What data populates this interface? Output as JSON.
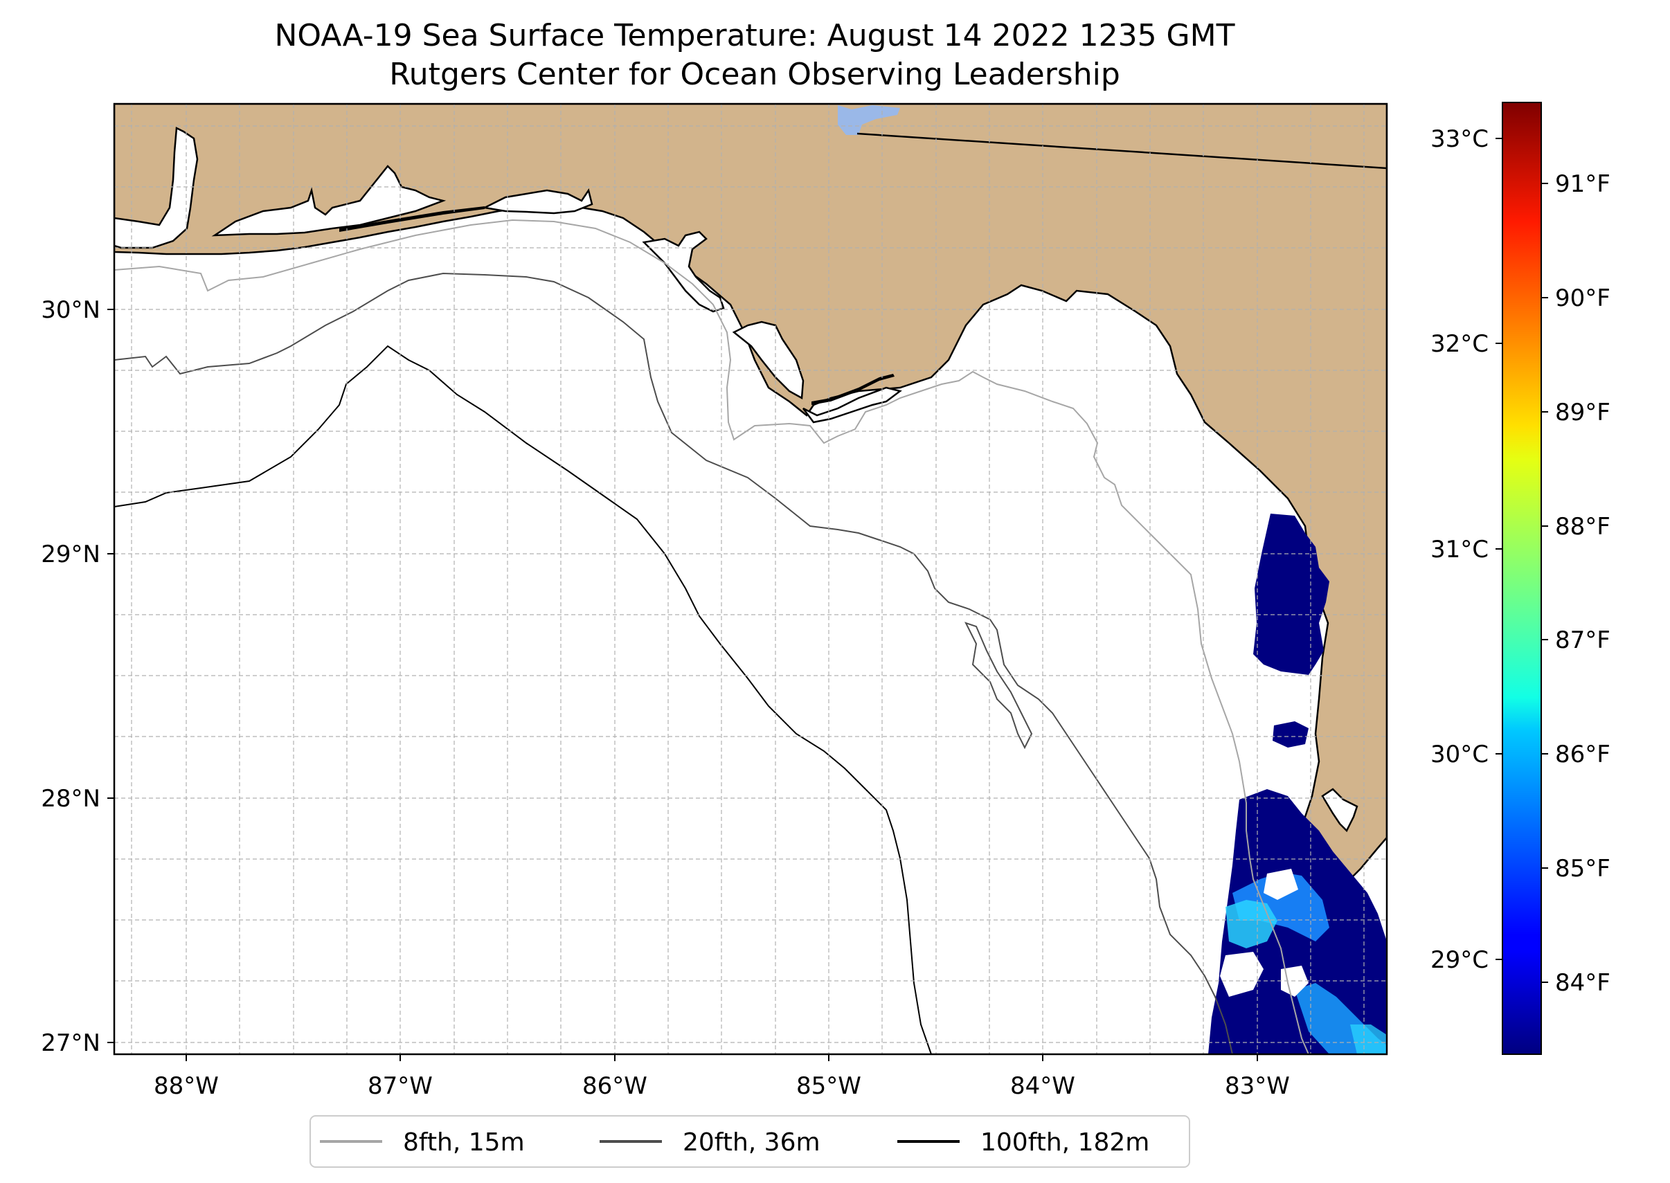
{
  "title": {
    "line1": "NOAA-19 Sea Surface Temperature: August 14 2022 1235 GMT",
    "line2": "Rutgers Center for Ocean Observing Leadership"
  },
  "colors": {
    "land": "#d2b48c",
    "lake": "#9ab8e8",
    "ocean": "#ffffff",
    "grid": "#b0b0b0",
    "iso8": "#a6a6a6",
    "iso20": "#4d4d4d",
    "iso100": "#000000"
  },
  "map": {
    "lon_labels": [
      "88°W",
      "87°W",
      "86°W",
      "85°W",
      "84°W",
      "83°W"
    ],
    "lat_labels": [
      "30°N",
      "29°N",
      "28°N",
      "27°N"
    ]
  },
  "colorbar": {
    "celsius_labels": [
      "33°C",
      "32°C",
      "31°C",
      "30°C",
      "29°C"
    ],
    "fahrenheit_labels": [
      "91°F",
      "90°F",
      "89°F",
      "88°F",
      "87°F",
      "86°F",
      "85°F",
      "84°F"
    ],
    "colormap": "jet",
    "celsius_range": [
      28.5,
      33.2
    ]
  },
  "legend": [
    {
      "label": "8fth, 15m",
      "color": "#a6a6a6"
    },
    {
      "label": "20fth, 36m",
      "color": "#4d4d4d"
    },
    {
      "label": "100fth, 182m",
      "color": "#000000"
    }
  ],
  "chart_data": {
    "type": "map",
    "title": "NOAA-19 Sea Surface Temperature: August 14 2022 1235 GMT / Rutgers Center for Ocean Observing Leadership",
    "extent": {
      "lon": [
        -88.33,
        -82.37
      ],
      "lat": [
        26.93,
        30.85
      ]
    },
    "lon_ticks": [
      -88,
      -87,
      -86,
      -85,
      -84,
      -83
    ],
    "lat_ticks": [
      30,
      29,
      28,
      27
    ],
    "variable": "Sea Surface Temperature",
    "units": "°C / °F",
    "colorbar_range_c": [
      28.5,
      33.2
    ],
    "isobaths": [
      "8fth, 15m",
      "20fth, 36m",
      "100fth, 182m"
    ]
  }
}
